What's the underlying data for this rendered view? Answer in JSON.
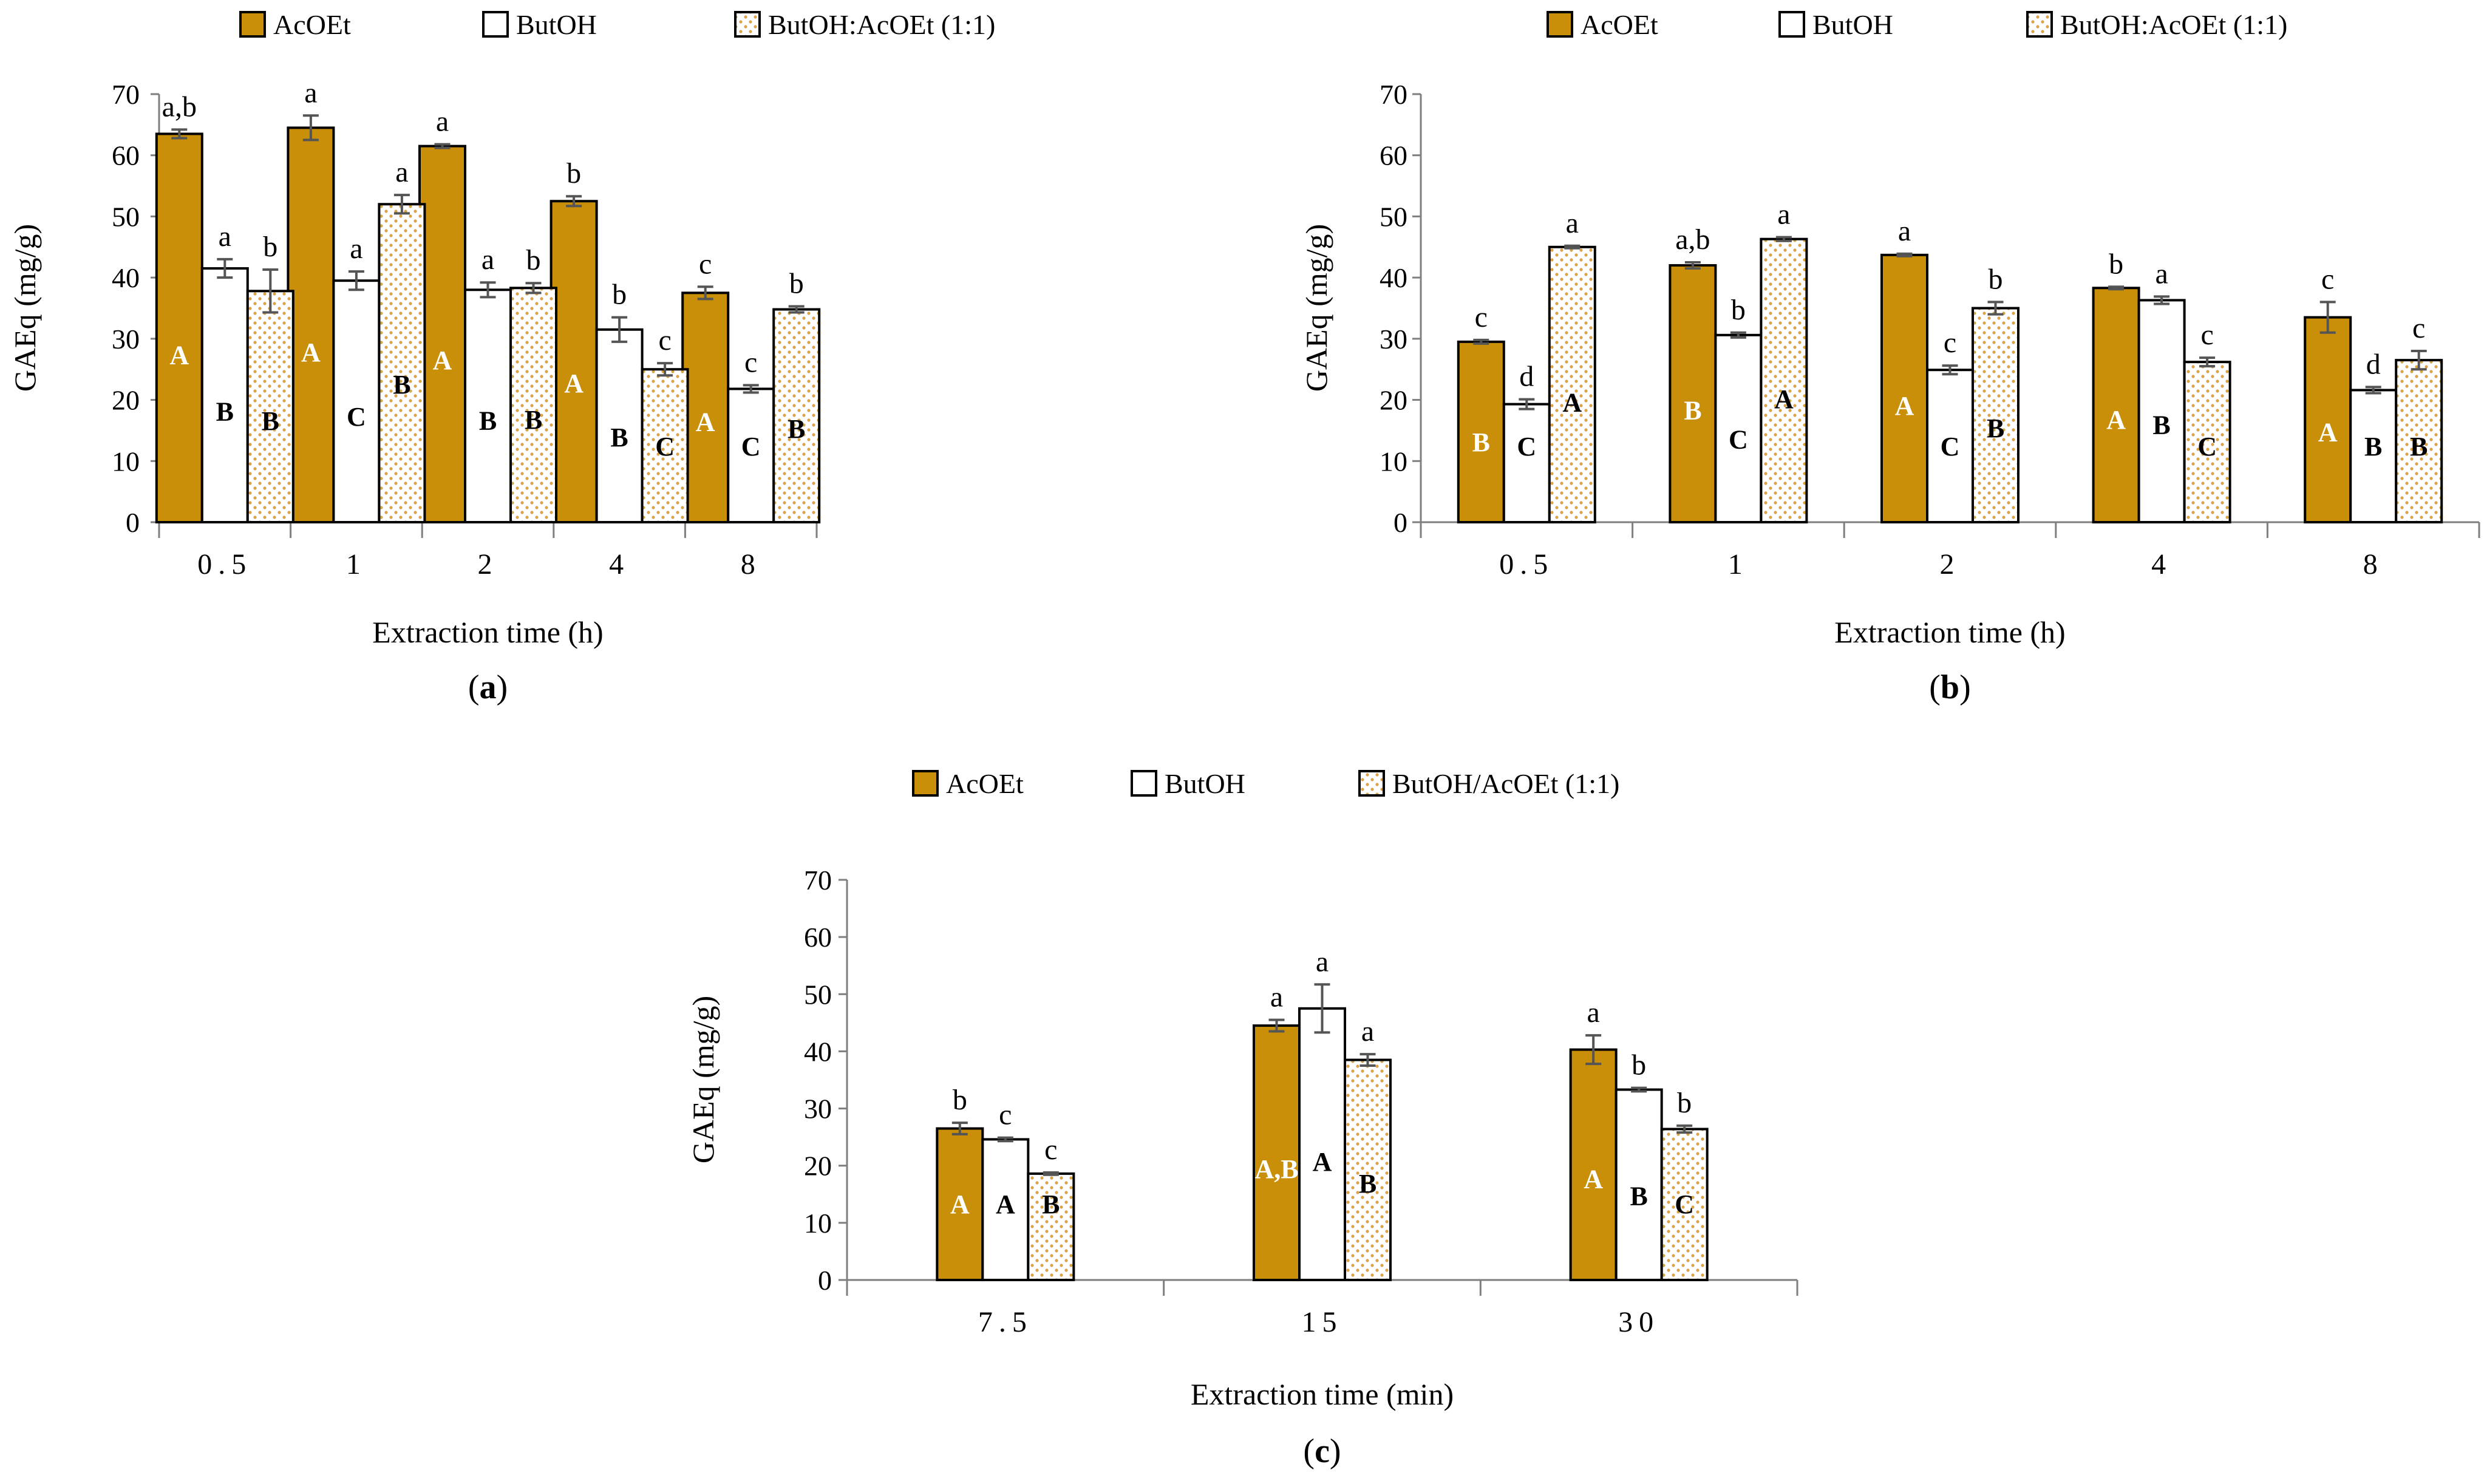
{
  "colors": {
    "acoet_fill": "#C98F08",
    "mix_dots": "#D9A34A",
    "outline": "#000000",
    "errorbar": "#555555",
    "axis": "#7f7f7f",
    "text": "#000000",
    "acoet_group_letter": "#ffffff"
  },
  "chart_data": [
    {
      "panel": "(a)",
      "panel_letter": "a",
      "type": "bar",
      "legend": [
        "AcOEt",
        "ButOH",
        "ButOH:AcOEt (1:1)"
      ],
      "categories": [
        "0.5",
        "1",
        "2",
        "4",
        "8"
      ],
      "xlabel": "Extraction time (h)",
      "ylabel": "GAEq (mg/g)",
      "ylim": [
        0,
        70
      ],
      "yticks": [
        0,
        10,
        20,
        30,
        40,
        50,
        60,
        70
      ],
      "series": [
        {
          "name": "AcOEt",
          "values": [
            63.5,
            64.5,
            61.5,
            52.5,
            37.5
          ],
          "errors": [
            0.7,
            2.0,
            0.3,
            0.8,
            1.0
          ],
          "letters_top": [
            "a,b",
            "a",
            "a",
            "b",
            "c"
          ],
          "letters_in": [
            "A",
            "A",
            "A",
            "A",
            "A"
          ]
        },
        {
          "name": "ButOH",
          "values": [
            41.5,
            39.5,
            38.0,
            31.5,
            21.8
          ],
          "errors": [
            1.5,
            1.5,
            1.2,
            2.0,
            0.6
          ],
          "letters_top": [
            "a",
            "a",
            "a",
            "b",
            "c"
          ],
          "letters_in": [
            "B",
            "C",
            "B",
            "B",
            "C"
          ]
        },
        {
          "name": "ButOH:AcOEt (1:1)",
          "values": [
            37.8,
            52.0,
            38.3,
            25.0,
            34.8
          ],
          "errors": [
            3.5,
            1.5,
            0.8,
            1.0,
            0.5
          ],
          "letters_top": [
            "b",
            "a",
            "b",
            "c",
            "b"
          ],
          "letters_in": [
            "B",
            "B",
            "B",
            "C",
            "B"
          ]
        }
      ]
    },
    {
      "panel": "(b)",
      "panel_letter": "b",
      "type": "bar",
      "legend": [
        "AcOEt",
        "ButOH",
        "ButOH:AcOEt (1:1)"
      ],
      "categories": [
        "0.5",
        "1",
        "2",
        "4",
        "8"
      ],
      "xlabel": "Extraction time (h)",
      "ylabel": "GAEq (mg/g)",
      "ylim": [
        0,
        70
      ],
      "yticks": [
        0,
        10,
        20,
        30,
        40,
        50,
        60,
        70
      ],
      "series": [
        {
          "name": "AcOEt",
          "values": [
            29.5,
            42.0,
            43.7,
            38.3,
            33.5
          ],
          "errors": [
            0.3,
            0.5,
            0.2,
            0.2,
            2.5
          ],
          "letters_top": [
            "c",
            "a,b",
            "a",
            "b",
            "c"
          ],
          "letters_in": [
            "B",
            "B",
            "A",
            "A",
            "A"
          ]
        },
        {
          "name": "ButOH",
          "values": [
            19.3,
            30.6,
            24.9,
            36.3,
            21.6
          ],
          "errors": [
            0.8,
            0.4,
            0.7,
            0.6,
            0.5
          ],
          "letters_top": [
            "d",
            "b",
            "c",
            "a",
            "d"
          ],
          "letters_in": [
            "C",
            "C",
            "C",
            "B",
            "B"
          ]
        },
        {
          "name": "ButOH:AcOEt (1:1)",
          "values": [
            45.0,
            46.3,
            35.0,
            26.2,
            26.5
          ],
          "errors": [
            0.2,
            0.3,
            1.0,
            0.7,
            1.5
          ],
          "letters_top": [
            "a",
            "a",
            "b",
            "c",
            "c"
          ],
          "letters_in": [
            "A",
            "A",
            "B",
            "C",
            "B"
          ]
        }
      ]
    },
    {
      "panel": "(c)",
      "panel_letter": "c",
      "type": "bar",
      "legend": [
        "AcOEt",
        "ButOH",
        "ButOH/AcOEt (1:1)"
      ],
      "categories": [
        "7.5",
        "15",
        "30"
      ],
      "xlabel": "Extraction time (min)",
      "ylabel": "GAEq (mg/g)",
      "ylim": [
        0,
        70
      ],
      "yticks": [
        0,
        10,
        20,
        30,
        40,
        50,
        60,
        70
      ],
      "series": [
        {
          "name": "AcOEt",
          "values": [
            26.5,
            44.5,
            40.3
          ],
          "errors": [
            1.0,
            1.0,
            2.5
          ],
          "letters_top": [
            "b",
            "a",
            "a"
          ],
          "letters_in": [
            "A",
            "A,B",
            "A"
          ]
        },
        {
          "name": "ButOH",
          "values": [
            24.6,
            47.5,
            33.3
          ],
          "errors": [
            0.3,
            4.2,
            0.3
          ],
          "letters_top": [
            "c",
            "a",
            "b"
          ],
          "letters_in": [
            "A",
            "A",
            "B"
          ]
        },
        {
          "name": "ButOH/AcOEt (1:1)",
          "values": [
            18.6,
            38.5,
            26.4
          ],
          "errors": [
            0.2,
            1.0,
            0.6
          ],
          "letters_top": [
            "c",
            "a",
            "b"
          ],
          "letters_in": [
            "B",
            "B",
            "C"
          ]
        }
      ]
    }
  ]
}
